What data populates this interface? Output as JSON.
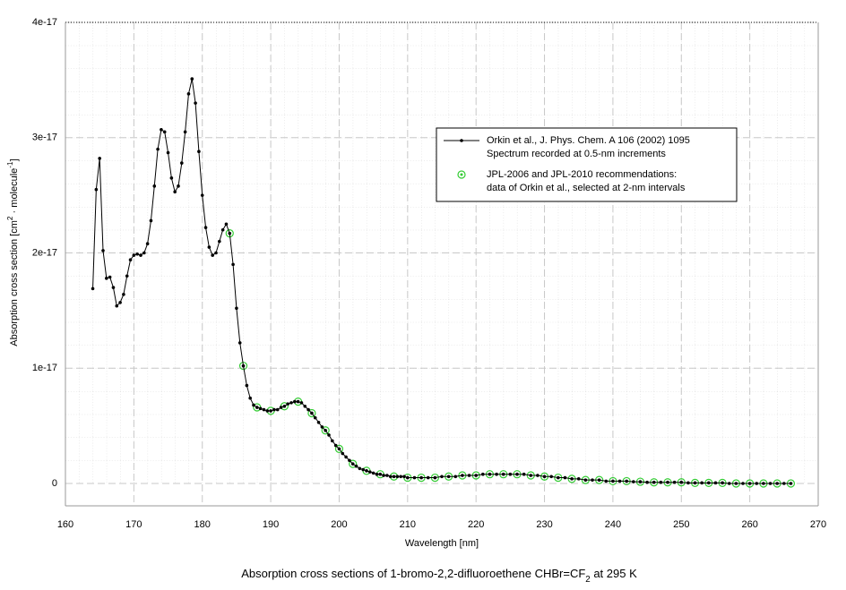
{
  "chart_data": {
    "type": "line",
    "title": [
      "Absorption cross sections of 1-bromo-2,2-difluoroethene CHBr=CF",
      "2",
      " at 295 K"
    ],
    "x_label": "Wavelength [nm]",
    "y_label": [
      "Absorption cross section [cm",
      "2",
      " · molecule",
      "-1",
      "]"
    ],
    "xlim": [
      160,
      270
    ],
    "xticks": [
      160,
      170,
      180,
      190,
      200,
      210,
      220,
      230,
      240,
      250,
      260,
      270
    ],
    "ylim": [
      0,
      4e-17
    ],
    "yticks": [
      0,
      1e-17,
      2e-17,
      3e-17,
      4e-17
    ],
    "grid": true,
    "minor_grid": true,
    "legend": "upper right",
    "series": [
      {
        "name": "Orkin et al., J. Phys. Chem. A 106 (2002) 1095",
        "description": "Spectrum recorded at 0.5-nm increments",
        "color": "#000000",
        "marker": "dot",
        "line": true,
        "x": [
          164,
          164.5,
          165,
          165.5,
          166,
          166.5,
          167,
          167.5,
          168,
          168.5,
          169,
          169.5,
          170,
          170.5,
          171,
          171.5,
          172,
          172.5,
          173,
          173.5,
          174,
          174.5,
          175,
          175.5,
          176,
          176.5,
          177,
          177.5,
          178,
          178.5,
          179,
          179.5,
          180,
          180.5,
          181,
          181.5,
          182,
          182.5,
          183,
          183.5,
          184,
          184.5,
          185,
          185.5,
          186,
          186.5,
          187,
          187.5,
          188,
          188.5,
          189,
          189.5,
          190,
          190.5,
          191,
          191.5,
          192,
          192.5,
          193,
          193.5,
          194,
          194.5,
          195,
          195.5,
          196,
          196.5,
          197,
          197.5,
          198,
          198.5,
          199,
          199.5,
          200,
          200.5,
          201,
          201.5,
          202,
          202.5,
          203,
          203.5,
          204,
          204.5,
          205,
          205.5,
          206,
          206.5,
          207,
          207.5,
          208,
          208.5,
          209,
          209.5,
          210,
          211,
          212,
          213,
          214,
          215,
          216,
          217,
          218,
          219,
          220,
          221,
          222,
          223,
          224,
          225,
          226,
          227,
          228,
          229,
          230,
          231,
          232,
          233,
          234,
          235,
          236,
          237,
          238,
          239,
          240,
          241,
          242,
          243,
          244,
          245,
          246,
          247,
          248,
          249,
          250,
          251,
          252,
          253,
          254,
          255,
          256,
          257,
          258,
          259,
          260,
          261,
          262,
          263,
          264,
          265,
          266
        ],
        "values": [
          1.69e-17,
          2.55e-17,
          2.82e-17,
          2.02e-17,
          1.78e-17,
          1.79e-17,
          1.7e-17,
          1.54e-17,
          1.57e-17,
          1.64e-17,
          1.8e-17,
          1.94e-17,
          1.98e-17,
          1.99e-17,
          1.98e-17,
          2e-17,
          2.08e-17,
          2.28e-17,
          2.58e-17,
          2.9e-17,
          3.07e-17,
          3.05e-17,
          2.87e-17,
          2.65e-17,
          2.53e-17,
          2.58e-17,
          2.78e-17,
          3.05e-17,
          3.38e-17,
          3.51e-17,
          3.3e-17,
          2.88e-17,
          2.5e-17,
          2.22e-17,
          2.05e-17,
          1.98e-17,
          2e-17,
          2.1e-17,
          2.2e-17,
          2.25e-17,
          2.17e-17,
          1.9e-17,
          1.52e-17,
          1.22e-17,
          1.02e-17,
          8.5e-18,
          7.4e-18,
          6.8e-18,
          6.6e-18,
          6.5e-18,
          6.4e-18,
          6.3e-18,
          6.3e-18,
          6.4e-18,
          6.4e-18,
          6.6e-18,
          6.7e-18,
          6.9e-18,
          7e-18,
          7.1e-18,
          7.1e-18,
          7e-18,
          6.7e-18,
          6.4e-18,
          6.1e-18,
          5.7e-18,
          5.3e-18,
          4.9e-18,
          4.6e-18,
          4.2e-18,
          3.7e-18,
          3.3e-18,
          3e-18,
          2.6e-18,
          2.3e-18,
          2e-18,
          1.7e-18,
          1.5e-18,
          1.3e-18,
          1.2e-18,
          1.1e-18,
          1e-18,
          9e-19,
          8e-19,
          8e-19,
          7e-19,
          7e-19,
          6e-19,
          6e-19,
          6e-19,
          6e-19,
          6e-19,
          5e-19,
          5e-19,
          5e-19,
          5e-19,
          5e-19,
          6e-19,
          6e-19,
          6e-19,
          7e-19,
          7e-19,
          7e-19,
          8e-19,
          8e-19,
          8e-19,
          8e-19,
          8e-19,
          8e-19,
          8e-19,
          7e-19,
          7e-19,
          6e-19,
          6e-19,
          5e-19,
          5e-19,
          4e-19,
          4e-19,
          3e-19,
          3e-19,
          3e-19,
          2e-19,
          2e-19,
          2e-19,
          2e-19,
          1.5e-19,
          1.5e-19,
          1e-19,
          1e-19,
          1e-19,
          1e-19,
          1e-19,
          1e-19,
          5e-20,
          5e-20,
          5e-20,
          5e-20,
          5e-20,
          5e-20,
          0,
          0,
          0,
          0,
          0,
          0,
          0,
          0,
          0,
          0
        ]
      },
      {
        "name": "JPL-2006 and JPL-2010 recommendations:",
        "description": "data of Orkin et al., selected at 2-nm intervals",
        "color": "#33cc33",
        "marker": "circle",
        "line": false,
        "x": [
          184,
          186,
          188,
          190,
          192,
          194,
          196,
          198,
          200,
          202,
          204,
          206,
          208,
          210,
          212,
          214,
          216,
          218,
          220,
          222,
          224,
          226,
          228,
          230,
          232,
          234,
          236,
          238,
          240,
          242,
          244,
          246,
          248,
          250,
          252,
          254,
          256,
          258,
          260,
          262,
          264,
          266
        ],
        "values": [
          2.17e-17,
          1.02e-17,
          6.6e-18,
          6.3e-18,
          6.7e-18,
          7.1e-18,
          6.1e-18,
          4.6e-18,
          3e-18,
          1.7e-18,
          1.1e-18,
          8e-19,
          6e-19,
          5e-19,
          5e-19,
          5e-19,
          6e-19,
          7e-19,
          7e-19,
          8e-19,
          8e-19,
          8e-19,
          7e-19,
          6e-19,
          5e-19,
          4e-19,
          3e-19,
          3e-19,
          2e-19,
          2e-19,
          1.5e-19,
          1e-19,
          1e-19,
          1e-19,
          5e-20,
          5e-20,
          5e-20,
          0,
          0,
          0,
          0,
          0
        ]
      }
    ]
  }
}
